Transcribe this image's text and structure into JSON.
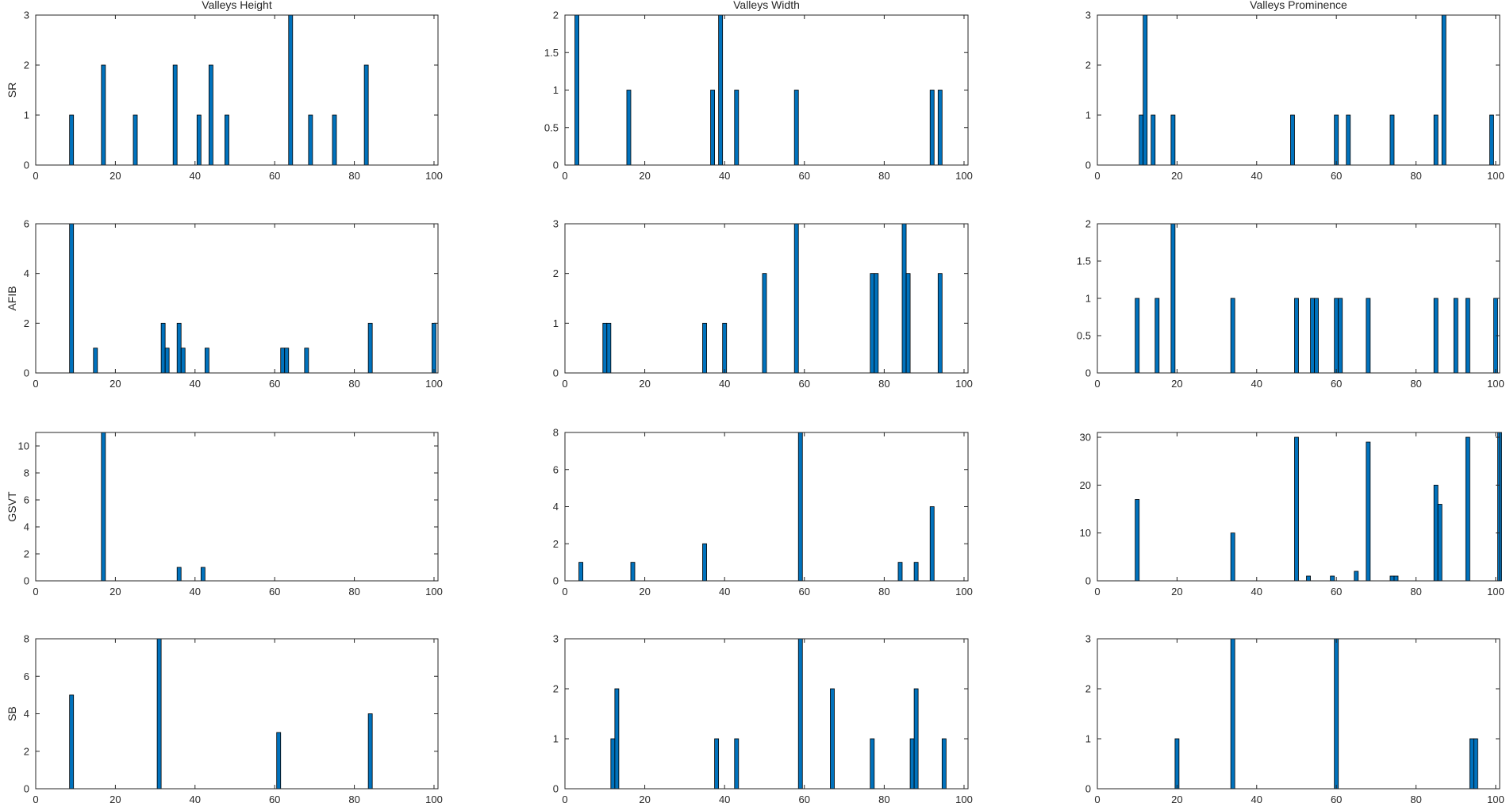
{
  "chart_data": [
    {
      "type": "bar",
      "row": 0,
      "col": 0,
      "title": "Valleys Height",
      "ylabel": "SR",
      "xlim": [
        0,
        101
      ],
      "ylim": [
        0,
        3
      ],
      "xticks": [
        0,
        20,
        40,
        60,
        80,
        100
      ],
      "yticks": [
        0,
        1,
        2,
        3
      ],
      "color": "#0072BD",
      "bars": [
        {
          "x": 9,
          "y": 1
        },
        {
          "x": 17,
          "y": 2
        },
        {
          "x": 25,
          "y": 1
        },
        {
          "x": 35,
          "y": 2
        },
        {
          "x": 41,
          "y": 1
        },
        {
          "x": 44,
          "y": 2
        },
        {
          "x": 48,
          "y": 1
        },
        {
          "x": 64,
          "y": 3
        },
        {
          "x": 69,
          "y": 1
        },
        {
          "x": 75,
          "y": 1
        },
        {
          "x": 83,
          "y": 2
        }
      ]
    },
    {
      "type": "bar",
      "row": 0,
      "col": 1,
      "title": "Valleys Width",
      "ylabel": "",
      "xlim": [
        0,
        101
      ],
      "ylim": [
        0,
        2
      ],
      "xticks": [
        0,
        20,
        40,
        60,
        80,
        100
      ],
      "yticks": [
        0,
        0.5,
        1,
        1.5,
        2
      ],
      "color": "#0072BD",
      "bars": [
        {
          "x": 3,
          "y": 2
        },
        {
          "x": 16,
          "y": 1
        },
        {
          "x": 37,
          "y": 1
        },
        {
          "x": 39,
          "y": 2
        },
        {
          "x": 43,
          "y": 1
        },
        {
          "x": 58,
          "y": 1
        },
        {
          "x": 92,
          "y": 1
        },
        {
          "x": 94,
          "y": 1
        }
      ]
    },
    {
      "type": "bar",
      "row": 0,
      "col": 2,
      "title": "Valleys Prominence",
      "ylabel": "",
      "xlim": [
        0,
        101
      ],
      "ylim": [
        0,
        3
      ],
      "xticks": [
        0,
        20,
        40,
        60,
        80,
        100
      ],
      "yticks": [
        0,
        1,
        2,
        3
      ],
      "color": "#0072BD",
      "bars": [
        {
          "x": 11,
          "y": 1
        },
        {
          "x": 12,
          "y": 3
        },
        {
          "x": 14,
          "y": 1
        },
        {
          "x": 19,
          "y": 1
        },
        {
          "x": 49,
          "y": 1
        },
        {
          "x": 60,
          "y": 1
        },
        {
          "x": 63,
          "y": 1
        },
        {
          "x": 74,
          "y": 1
        },
        {
          "x": 85,
          "y": 1
        },
        {
          "x": 87,
          "y": 3
        },
        {
          "x": 99,
          "y": 1
        }
      ]
    },
    {
      "type": "bar",
      "row": 1,
      "col": 0,
      "title": "",
      "ylabel": "AFIB",
      "xlim": [
        0,
        101
      ],
      "ylim": [
        0,
        6
      ],
      "xticks": [
        0,
        20,
        40,
        60,
        80,
        100
      ],
      "yticks": [
        0,
        2,
        4,
        6
      ],
      "color": "#0072BD",
      "bars": [
        {
          "x": 9,
          "y": 6
        },
        {
          "x": 15,
          "y": 1
        },
        {
          "x": 32,
          "y": 2
        },
        {
          "x": 33,
          "y": 1
        },
        {
          "x": 36,
          "y": 2
        },
        {
          "x": 37,
          "y": 1
        },
        {
          "x": 43,
          "y": 1
        },
        {
          "x": 62,
          "y": 1
        },
        {
          "x": 63,
          "y": 1
        },
        {
          "x": 68,
          "y": 1
        },
        {
          "x": 84,
          "y": 2
        },
        {
          "x": 100,
          "y": 2
        }
      ]
    },
    {
      "type": "bar",
      "row": 1,
      "col": 1,
      "title": "",
      "ylabel": "",
      "xlim": [
        0,
        101
      ],
      "ylim": [
        0,
        3
      ],
      "xticks": [
        0,
        20,
        40,
        60,
        80,
        100
      ],
      "yticks": [
        0,
        1,
        2,
        3
      ],
      "color": "#0072BD",
      "bars": [
        {
          "x": 10,
          "y": 1
        },
        {
          "x": 11,
          "y": 1
        },
        {
          "x": 35,
          "y": 1
        },
        {
          "x": 40,
          "y": 1
        },
        {
          "x": 50,
          "y": 2
        },
        {
          "x": 58,
          "y": 3
        },
        {
          "x": 77,
          "y": 2
        },
        {
          "x": 78,
          "y": 2
        },
        {
          "x": 85,
          "y": 3
        },
        {
          "x": 86,
          "y": 2
        },
        {
          "x": 94,
          "y": 2
        }
      ]
    },
    {
      "type": "bar",
      "row": 1,
      "col": 2,
      "title": "",
      "ylabel": "",
      "xlim": [
        0,
        101
      ],
      "ylim": [
        0,
        2
      ],
      "xticks": [
        0,
        20,
        40,
        60,
        80,
        100
      ],
      "yticks": [
        0,
        0.5,
        1,
        1.5,
        2
      ],
      "color": "#0072BD",
      "bars": [
        {
          "x": 10,
          "y": 1
        },
        {
          "x": 15,
          "y": 1
        },
        {
          "x": 19,
          "y": 2
        },
        {
          "x": 34,
          "y": 1
        },
        {
          "x": 50,
          "y": 1
        },
        {
          "x": 54,
          "y": 1
        },
        {
          "x": 55,
          "y": 1
        },
        {
          "x": 60,
          "y": 1
        },
        {
          "x": 61,
          "y": 1
        },
        {
          "x": 68,
          "y": 1
        },
        {
          "x": 85,
          "y": 1
        },
        {
          "x": 90,
          "y": 1
        },
        {
          "x": 93,
          "y": 1
        },
        {
          "x": 100,
          "y": 1
        }
      ]
    },
    {
      "type": "bar",
      "row": 2,
      "col": 0,
      "title": "",
      "ylabel": "GSVT",
      "xlim": [
        0,
        101
      ],
      "ylim": [
        0,
        11
      ],
      "xticks": [
        0,
        20,
        40,
        60,
        80,
        100
      ],
      "yticks": [
        0,
        2,
        4,
        6,
        8,
        10
      ],
      "color": "#0072BD",
      "bars": [
        {
          "x": 17,
          "y": 11
        },
        {
          "x": 36,
          "y": 1
        },
        {
          "x": 42,
          "y": 1
        }
      ]
    },
    {
      "type": "bar",
      "row": 2,
      "col": 1,
      "title": "",
      "ylabel": "",
      "xlim": [
        0,
        101
      ],
      "ylim": [
        0,
        8
      ],
      "xticks": [
        0,
        20,
        40,
        60,
        80,
        100
      ],
      "yticks": [
        0,
        2,
        4,
        6,
        8
      ],
      "color": "#0072BD",
      "bars": [
        {
          "x": 4,
          "y": 1
        },
        {
          "x": 17,
          "y": 1
        },
        {
          "x": 35,
          "y": 2
        },
        {
          "x": 59,
          "y": 8
        },
        {
          "x": 84,
          "y": 1
        },
        {
          "x": 88,
          "y": 1
        },
        {
          "x": 92,
          "y": 4
        }
      ]
    },
    {
      "type": "bar",
      "row": 2,
      "col": 2,
      "title": "",
      "ylabel": "",
      "xlim": [
        0,
        101
      ],
      "ylim": [
        0,
        31
      ],
      "xticks": [
        0,
        20,
        40,
        60,
        80,
        100
      ],
      "yticks": [
        0,
        10,
        20,
        30
      ],
      "color": "#0072BD",
      "bars": [
        {
          "x": 10,
          "y": 17
        },
        {
          "x": 34,
          "y": 10
        },
        {
          "x": 50,
          "y": 30
        },
        {
          "x": 53,
          "y": 1
        },
        {
          "x": 59,
          "y": 1
        },
        {
          "x": 65,
          "y": 2
        },
        {
          "x": 68,
          "y": 29
        },
        {
          "x": 74,
          "y": 1
        },
        {
          "x": 75,
          "y": 1
        },
        {
          "x": 85,
          "y": 20
        },
        {
          "x": 86,
          "y": 16
        },
        {
          "x": 93,
          "y": 30
        },
        {
          "x": 101,
          "y": 31
        }
      ]
    },
    {
      "type": "bar",
      "row": 3,
      "col": 0,
      "title": "",
      "ylabel": "SB",
      "xlim": [
        0,
        101
      ],
      "ylim": [
        0,
        8
      ],
      "xticks": [
        0,
        20,
        40,
        60,
        80,
        100
      ],
      "yticks": [
        0,
        2,
        4,
        6,
        8
      ],
      "color": "#0072BD",
      "bars": [
        {
          "x": 9,
          "y": 5
        },
        {
          "x": 31,
          "y": 8
        },
        {
          "x": 61,
          "y": 3
        },
        {
          "x": 84,
          "y": 4
        }
      ]
    },
    {
      "type": "bar",
      "row": 3,
      "col": 1,
      "title": "",
      "ylabel": "",
      "xlim": [
        0,
        101
      ],
      "ylim": [
        0,
        3
      ],
      "xticks": [
        0,
        20,
        40,
        60,
        80,
        100
      ],
      "yticks": [
        0,
        1,
        2,
        3
      ],
      "color": "#0072BD",
      "bars": [
        {
          "x": 12,
          "y": 1
        },
        {
          "x": 13,
          "y": 2
        },
        {
          "x": 38,
          "y": 1
        },
        {
          "x": 43,
          "y": 1
        },
        {
          "x": 59,
          "y": 3
        },
        {
          "x": 67,
          "y": 2
        },
        {
          "x": 77,
          "y": 1
        },
        {
          "x": 87,
          "y": 1
        },
        {
          "x": 88,
          "y": 2
        },
        {
          "x": 95,
          "y": 1
        }
      ]
    },
    {
      "type": "bar",
      "row": 3,
      "col": 2,
      "title": "",
      "ylabel": "",
      "xlim": [
        0,
        101
      ],
      "ylim": [
        0,
        3
      ],
      "xticks": [
        0,
        20,
        40,
        60,
        80,
        100
      ],
      "yticks": [
        0,
        1,
        2,
        3
      ],
      "color": "#0072BD",
      "bars": [
        {
          "x": 20,
          "y": 1
        },
        {
          "x": 34,
          "y": 3
        },
        {
          "x": 60,
          "y": 3
        },
        {
          "x": 94,
          "y": 1
        },
        {
          "x": 95,
          "y": 1
        }
      ]
    }
  ]
}
